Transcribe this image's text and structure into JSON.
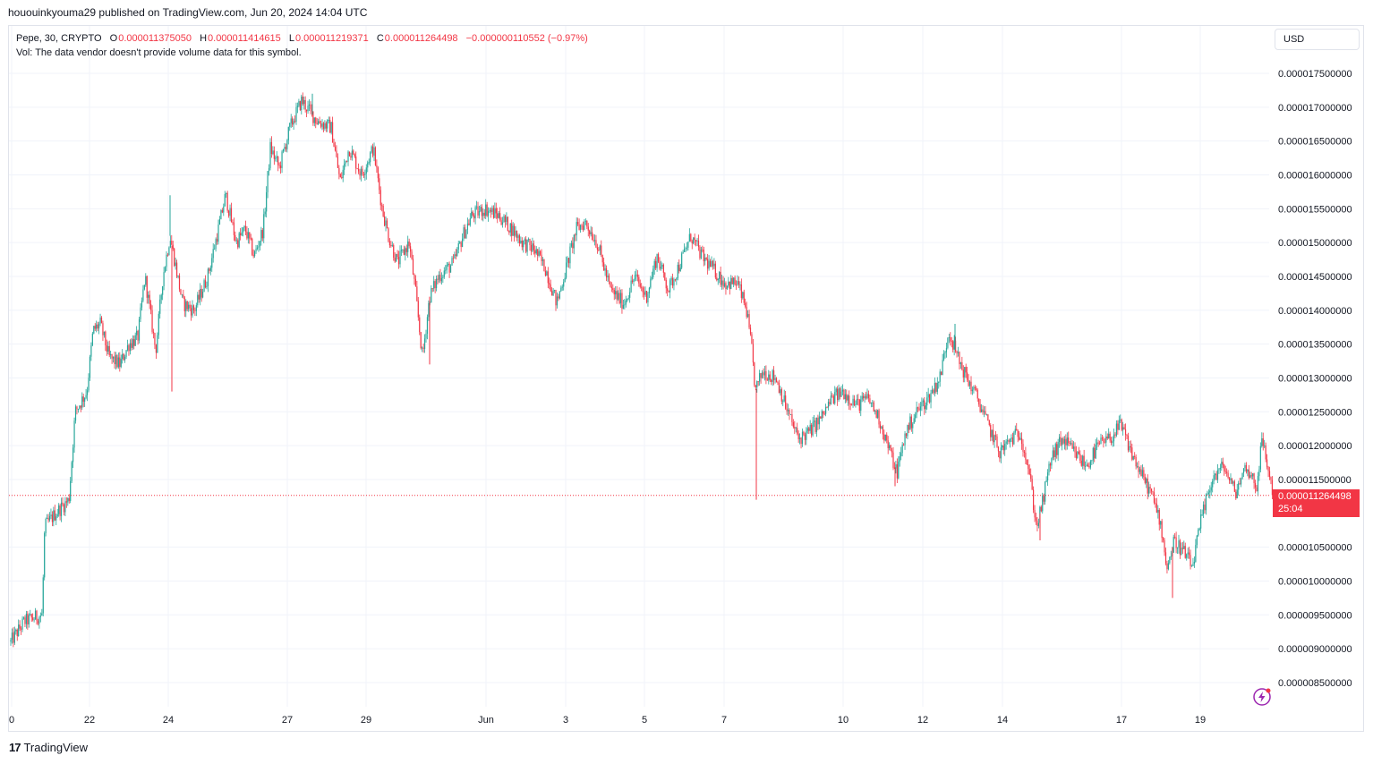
{
  "publish_line": "hououinkyouma29 published on TradingView.com, Jun 20, 2024 14:04 UTC",
  "legend": {
    "symbol": "Pepe, 30, CRYPTO",
    "open_key": "O",
    "open": "0.000011375050",
    "high_key": "H",
    "high": "0.000011414615",
    "low_key": "L",
    "low": "0.000011219371",
    "close_key": "C",
    "close": "0.000011264498",
    "change": "−0.000000110552 (−0.97%)",
    "vol_note": "Vol: The data vendor doesn't provide volume data for this symbol."
  },
  "currency": "USD",
  "last_price_tag": {
    "price": "0.000011264498",
    "countdown": "25:04"
  },
  "footer_logo": {
    "mark": "17",
    "text": "TradingView"
  },
  "colors": {
    "up": "#26a69a",
    "down": "#f23645",
    "grid": "#f0f3fa",
    "text": "#131722"
  },
  "chart_data": {
    "type": "candlestick",
    "interval": "30",
    "y_ticks": [
      "0.000017500000",
      "0.000017000000",
      "0.000016500000",
      "0.000016000000",
      "0.000015500000",
      "0.000015000000",
      "0.000014500000",
      "0.000014000000",
      "0.000013500000",
      "0.000013000000",
      "0.000012500000",
      "0.000012000000",
      "0.000011500000",
      "0.000010500000",
      "0.000010000000",
      "0.000009500000",
      "0.000009000000",
      "0.000008500000"
    ],
    "ylim": [
      8.2e-06,
      1.81e-05
    ],
    "x_ticks": [
      "0",
      "22",
      "24",
      "27",
      "29",
      "Jun",
      "3",
      "5",
      "7",
      "10",
      "12",
      "14",
      "17",
      "19"
    ],
    "x_tick_positions": [
      0,
      87,
      175,
      308,
      396,
      530,
      619,
      707,
      796,
      929,
      1018,
      1107,
      1240,
      1328
    ],
    "last_close": 1.1264498e-05,
    "price_path": [
      [
        0,
        9.1e-06
      ],
      [
        15,
        9.4e-06
      ],
      [
        35,
        9.5e-06
      ],
      [
        38,
        1.08e-05
      ],
      [
        50,
        1.1e-05
      ],
      [
        65,
        1.12e-05
      ],
      [
        72,
        1.25e-05
      ],
      [
        85,
        1.28e-05
      ],
      [
        92,
        1.37e-05
      ],
      [
        100,
        1.38e-05
      ],
      [
        110,
        1.33e-05
      ],
      [
        122,
        1.32e-05
      ],
      [
        132,
        1.35e-05
      ],
      [
        142,
        1.36e-05
      ],
      [
        150,
        1.45e-05
      ],
      [
        162,
        1.34e-05
      ],
      [
        170,
        1.45e-05
      ],
      [
        178,
        1.51e-05
      ],
      [
        192,
        1.41e-05
      ],
      [
        205,
        1.4e-05
      ],
      [
        220,
        1.45e-05
      ],
      [
        232,
        1.52e-05
      ],
      [
        240,
        1.57e-05
      ],
      [
        252,
        1.5e-05
      ],
      [
        262,
        1.52e-05
      ],
      [
        272,
        1.48e-05
      ],
      [
        282,
        1.52e-05
      ],
      [
        290,
        1.64e-05
      ],
      [
        300,
        1.61e-05
      ],
      [
        312,
        1.67e-05
      ],
      [
        325,
        1.71e-05
      ],
      [
        342,
        1.68e-05
      ],
      [
        358,
        1.67e-05
      ],
      [
        368,
        1.59e-05
      ],
      [
        378,
        1.64e-05
      ],
      [
        392,
        1.6e-05
      ],
      [
        405,
        1.64e-05
      ],
      [
        415,
        1.55e-05
      ],
      [
        422,
        1.51e-05
      ],
      [
        432,
        1.47e-05
      ],
      [
        445,
        1.5e-05
      ],
      [
        452,
        1.43e-05
      ],
      [
        460,
        1.33e-05
      ],
      [
        468,
        1.42e-05
      ],
      [
        478,
        1.45e-05
      ],
      [
        495,
        1.47e-05
      ],
      [
        505,
        1.51e-05
      ],
      [
        515,
        1.54e-05
      ],
      [
        530,
        1.55e-05
      ],
      [
        545,
        1.54e-05
      ],
      [
        560,
        1.52e-05
      ],
      [
        572,
        1.5e-05
      ],
      [
        585,
        1.49e-05
      ],
      [
        598,
        1.46e-05
      ],
      [
        610,
        1.41e-05
      ],
      [
        622,
        1.47e-05
      ],
      [
        632,
        1.52e-05
      ],
      [
        642,
        1.53e-05
      ],
      [
        655,
        1.5e-05
      ],
      [
        670,
        1.43e-05
      ],
      [
        685,
        1.41e-05
      ],
      [
        697,
        1.45e-05
      ],
      [
        710,
        1.42e-05
      ],
      [
        722,
        1.48e-05
      ],
      [
        735,
        1.43e-05
      ],
      [
        748,
        1.47e-05
      ],
      [
        760,
        1.51e-05
      ],
      [
        772,
        1.48e-05
      ],
      [
        785,
        1.46e-05
      ],
      [
        798,
        1.44e-05
      ],
      [
        812,
        1.44e-05
      ],
      [
        822,
        1.4e-05
      ],
      [
        828,
        1.34e-05
      ],
      [
        832,
        1.28e-05
      ],
      [
        840,
        1.31e-05
      ],
      [
        855,
        1.3e-05
      ],
      [
        868,
        1.25e-05
      ],
      [
        880,
        1.21e-05
      ],
      [
        892,
        1.22e-05
      ],
      [
        905,
        1.24e-05
      ],
      [
        918,
        1.27e-05
      ],
      [
        930,
        1.28e-05
      ],
      [
        945,
        1.26e-05
      ],
      [
        958,
        1.27e-05
      ],
      [
        970,
        1.24e-05
      ],
      [
        980,
        1.2e-05
      ],
      [
        990,
        1.16e-05
      ],
      [
        1000,
        1.22e-05
      ],
      [
        1012,
        1.25e-05
      ],
      [
        1025,
        1.27e-05
      ],
      [
        1038,
        1.3e-05
      ],
      [
        1048,
        1.37e-05
      ],
      [
        1058,
        1.33e-05
      ],
      [
        1068,
        1.3e-05
      ],
      [
        1080,
        1.27e-05
      ],
      [
        1092,
        1.23e-05
      ],
      [
        1105,
        1.19e-05
      ],
      [
        1118,
        1.21e-05
      ],
      [
        1128,
        1.22e-05
      ],
      [
        1138,
        1.16e-05
      ],
      [
        1146,
        1.08e-05
      ],
      [
        1152,
        1.11e-05
      ],
      [
        1162,
        1.18e-05
      ],
      [
        1175,
        1.21e-05
      ],
      [
        1188,
        1.19e-05
      ],
      [
        1202,
        1.17e-05
      ],
      [
        1215,
        1.2e-05
      ],
      [
        1228,
        1.21e-05
      ],
      [
        1240,
        1.23e-05
      ],
      [
        1252,
        1.19e-05
      ],
      [
        1262,
        1.16e-05
      ],
      [
        1274,
        1.13e-05
      ],
      [
        1284,
        1.09e-05
      ],
      [
        1292,
        1.02e-05
      ],
      [
        1300,
        1.06e-05
      ],
      [
        1312,
        1.04e-05
      ],
      [
        1320,
        1.02e-05
      ],
      [
        1330,
        1.09e-05
      ],
      [
        1342,
        1.15e-05
      ],
      [
        1355,
        1.17e-05
      ],
      [
        1368,
        1.13e-05
      ],
      [
        1380,
        1.17e-05
      ],
      [
        1392,
        1.14e-05
      ],
      [
        1398,
        1.21e-05
      ],
      [
        1404,
        1.17e-05
      ],
      [
        1410,
        1.13e-05
      ]
    ],
    "spikes": [
      [
        178,
        1.57e-05,
        "up"
      ],
      [
        180,
        1.28e-05,
        "down"
      ],
      [
        468,
        1.32e-05,
        "down"
      ],
      [
        833,
        1.12e-05,
        "down"
      ],
      [
        1298,
        9.75e-06,
        "down"
      ],
      [
        1150,
        1.06e-05,
        "down"
      ],
      [
        988,
        1.14e-05,
        "down"
      ],
      [
        1055,
        1.38e-05,
        "up"
      ],
      [
        337,
        1.72e-05,
        "up"
      ]
    ]
  }
}
